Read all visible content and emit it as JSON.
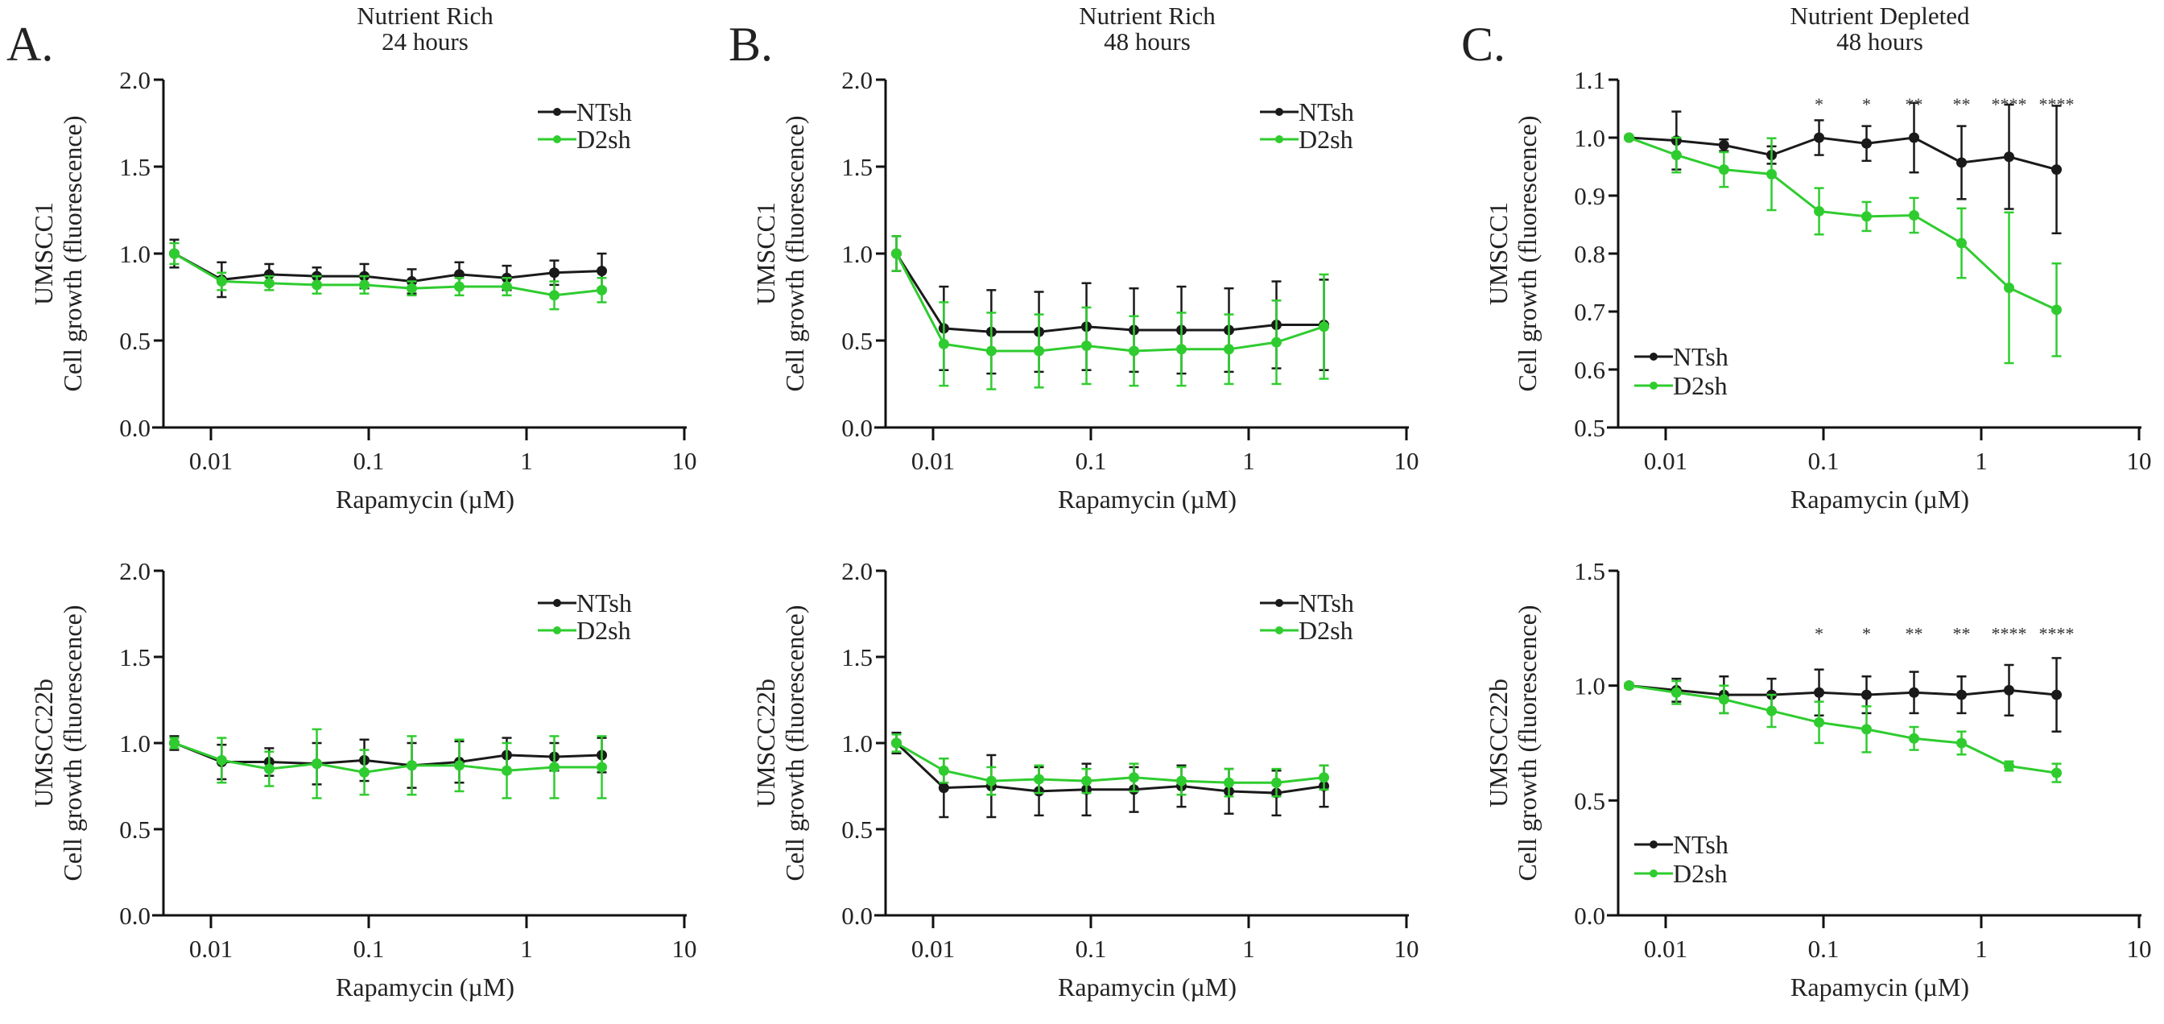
{
  "colors": {
    "NTsh": "#1a1a1a",
    "D2sh": "#2fcc2f"
  },
  "chart_data": [
    {
      "panel": "A.",
      "type": "line",
      "title": [
        "Nutrient Rich",
        "24 hours"
      ],
      "row": "top",
      "ylabel": [
        "UMSCC1",
        "Cell growth (fluorescence)"
      ],
      "xlabel": "Rapamycin (µM)",
      "xscale": "log",
      "xlim": [
        0.005,
        10
      ],
      "xticks": [
        "0.01",
        "0.1",
        "1",
        "10"
      ],
      "ylim": [
        0,
        2.0
      ],
      "yticks": [
        "0.0",
        "0.5",
        "1.0",
        "1.5",
        "2.0"
      ],
      "legend": "top-right",
      "x": [
        0.00586,
        0.0117,
        0.0234,
        0.0469,
        0.0938,
        0.1875,
        0.375,
        0.75,
        1.5,
        3
      ],
      "series": [
        {
          "name": "NTsh",
          "values": [
            1.0,
            0.85,
            0.88,
            0.87,
            0.87,
            0.84,
            0.88,
            0.86,
            0.89,
            0.9
          ],
          "error": [
            0.08,
            0.1,
            0.06,
            0.05,
            0.07,
            0.07,
            0.07,
            0.07,
            0.07,
            0.1
          ]
        },
        {
          "name": "D2sh",
          "values": [
            1.0,
            0.84,
            0.83,
            0.82,
            0.82,
            0.8,
            0.81,
            0.81,
            0.76,
            0.79
          ],
          "error": [
            0.06,
            0.05,
            0.04,
            0.05,
            0.05,
            0.04,
            0.05,
            0.05,
            0.08,
            0.07
          ]
        }
      ],
      "significance": []
    },
    {
      "panel": "B.",
      "type": "line",
      "title": [
        "Nutrient Rich",
        "48 hours"
      ],
      "row": "top",
      "ylabel": [
        "UMSCC1",
        "Cell growth (fluorescence)"
      ],
      "xlabel": "Rapamycin (µM)",
      "xscale": "log",
      "xlim": [
        0.005,
        10
      ],
      "xticks": [
        "0.01",
        "0.1",
        "1",
        "10"
      ],
      "ylim": [
        0,
        2.0
      ],
      "yticks": [
        "0.0",
        "0.5",
        "1.0",
        "1.5",
        "2.0"
      ],
      "legend": "top-right",
      "x": [
        0.00586,
        0.0117,
        0.0234,
        0.0469,
        0.0938,
        0.1875,
        0.375,
        0.75,
        1.5,
        3
      ],
      "series": [
        {
          "name": "NTsh",
          "values": [
            1.0,
            0.57,
            0.55,
            0.55,
            0.58,
            0.56,
            0.56,
            0.56,
            0.59,
            0.59
          ],
          "error": [
            0.1,
            0.24,
            0.24,
            0.23,
            0.25,
            0.24,
            0.25,
            0.24,
            0.25,
            0.26
          ]
        },
        {
          "name": "D2sh",
          "values": [
            1.0,
            0.48,
            0.44,
            0.44,
            0.47,
            0.44,
            0.45,
            0.45,
            0.49,
            0.58
          ],
          "error": [
            0.1,
            0.24,
            0.22,
            0.21,
            0.22,
            0.2,
            0.21,
            0.2,
            0.24,
            0.3
          ]
        }
      ],
      "significance": []
    },
    {
      "panel": "C.",
      "type": "line",
      "title": [
        "Nutrient Depleted",
        "48 hours"
      ],
      "row": "top",
      "ylabel": [
        "UMSCC1",
        "Cell growth (fluorescence)"
      ],
      "xlabel": "Rapamycin (µM)",
      "xscale": "log",
      "xlim": [
        0.005,
        10
      ],
      "xticks": [
        "0.01",
        "0.1",
        "1",
        "10"
      ],
      "ylim": [
        0.5,
        1.1
      ],
      "yticks": [
        "0.5",
        "0.6",
        "0.7",
        "0.8",
        "0.9",
        "1.0",
        "1.1"
      ],
      "legend": "bottom-left",
      "x": [
        0.00586,
        0.0117,
        0.0234,
        0.0469,
        0.0938,
        0.1875,
        0.375,
        0.75,
        1.5,
        3
      ],
      "series": [
        {
          "name": "NTsh",
          "values": [
            1.0,
            0.995,
            0.987,
            0.97,
            1.0,
            0.99,
            1.0,
            0.957,
            0.967,
            0.945
          ],
          "error": [
            0.003,
            0.05,
            0.01,
            0.015,
            0.03,
            0.03,
            0.06,
            0.063,
            0.09,
            0.11
          ]
        },
        {
          "name": "D2sh",
          "values": [
            1.0,
            0.97,
            0.945,
            0.937,
            0.873,
            0.864,
            0.866,
            0.818,
            0.741,
            0.703
          ],
          "error": [
            0.003,
            0.03,
            0.03,
            0.062,
            0.04,
            0.025,
            0.03,
            0.06,
            0.13,
            0.08
          ]
        }
      ],
      "significance": [
        "",
        "",
        "",
        "",
        "*",
        "*",
        "**",
        "**",
        "****",
        "****"
      ]
    },
    {
      "panel": "",
      "type": "line",
      "title": [],
      "row": "bottom",
      "ylabel": [
        "UMSCC22b",
        "Cell growth (fluorescence)"
      ],
      "xlabel": "Rapamycin (µM)",
      "xscale": "log",
      "xlim": [
        0.005,
        10
      ],
      "xticks": [
        "0.01",
        "0.1",
        "1",
        "10"
      ],
      "ylim": [
        0,
        2.0
      ],
      "yticks": [
        "0.0",
        "0.5",
        "1.0",
        "1.5",
        "2.0"
      ],
      "legend": "top-right",
      "x": [
        0.00586,
        0.0117,
        0.0234,
        0.0469,
        0.0938,
        0.1875,
        0.375,
        0.75,
        1.5,
        3
      ],
      "series": [
        {
          "name": "NTsh",
          "values": [
            1.0,
            0.89,
            0.89,
            0.88,
            0.9,
            0.87,
            0.89,
            0.93,
            0.92,
            0.93
          ],
          "error": [
            0.04,
            0.1,
            0.08,
            0.12,
            0.12,
            0.13,
            0.12,
            0.1,
            0.08,
            0.1
          ]
        },
        {
          "name": "D2sh",
          "values": [
            1.0,
            0.9,
            0.85,
            0.88,
            0.83,
            0.87,
            0.87,
            0.84,
            0.86,
            0.86
          ],
          "error": [
            0.03,
            0.13,
            0.1,
            0.2,
            0.13,
            0.17,
            0.15,
            0.16,
            0.18,
            0.18
          ]
        }
      ],
      "significance": []
    },
    {
      "panel": "",
      "type": "line",
      "title": [],
      "row": "bottom",
      "ylabel": [
        "UMSCC22b",
        "Cell growth (fluorescence)"
      ],
      "xlabel": "Rapamycin (µM)",
      "xscale": "log",
      "xlim": [
        0.005,
        10
      ],
      "xticks": [
        "0.01",
        "0.1",
        "1",
        "10"
      ],
      "ylim": [
        0,
        2.0
      ],
      "yticks": [
        "0.0",
        "0.5",
        "1.0",
        "1.5",
        "2.0"
      ],
      "legend": "top-right",
      "x": [
        0.00586,
        0.0117,
        0.0234,
        0.0469,
        0.0938,
        0.1875,
        0.375,
        0.75,
        1.5,
        3
      ],
      "series": [
        {
          "name": "NTsh",
          "values": [
            1.0,
            0.74,
            0.75,
            0.72,
            0.73,
            0.73,
            0.75,
            0.72,
            0.71,
            0.75
          ],
          "error": [
            0.06,
            0.17,
            0.18,
            0.14,
            0.15,
            0.13,
            0.12,
            0.13,
            0.13,
            0.12
          ]
        },
        {
          "name": "D2sh",
          "values": [
            1.0,
            0.84,
            0.78,
            0.79,
            0.78,
            0.8,
            0.78,
            0.77,
            0.77,
            0.8
          ],
          "error": [
            0.05,
            0.07,
            0.08,
            0.08,
            0.07,
            0.08,
            0.08,
            0.08,
            0.08,
            0.07
          ]
        }
      ],
      "significance": []
    },
    {
      "panel": "",
      "type": "line",
      "title": [],
      "row": "bottom",
      "ylabel": [
        "UMSCC22b",
        "Cell growth (fluorescence)"
      ],
      "xlabel": "Rapamycin (µM)",
      "xscale": "log",
      "xlim": [
        0.005,
        10
      ],
      "xticks": [
        "0.01",
        "0.1",
        "1",
        "10"
      ],
      "ylim": [
        0,
        1.5
      ],
      "yticks": [
        "0.0",
        "0.5",
        "1.0",
        "1.5"
      ],
      "legend": "bottom-left",
      "x": [
        0.00586,
        0.0117,
        0.0234,
        0.0469,
        0.0938,
        0.1875,
        0.375,
        0.75,
        1.5,
        3
      ],
      "series": [
        {
          "name": "NTsh",
          "values": [
            1.0,
            0.98,
            0.96,
            0.96,
            0.97,
            0.96,
            0.97,
            0.96,
            0.98,
            0.96
          ],
          "error": [
            0.01,
            0.05,
            0.08,
            0.07,
            0.1,
            0.08,
            0.09,
            0.08,
            0.11,
            0.16
          ]
        },
        {
          "name": "D2sh",
          "values": [
            1.0,
            0.97,
            0.94,
            0.89,
            0.84,
            0.81,
            0.77,
            0.75,
            0.65,
            0.62
          ],
          "error": [
            0.01,
            0.05,
            0.06,
            0.07,
            0.09,
            0.1,
            0.05,
            0.05,
            0.02,
            0.04
          ]
        }
      ],
      "significance": [
        "",
        "",
        "",
        "",
        "*",
        "*",
        "**",
        "**",
        "****",
        "****"
      ]
    }
  ]
}
